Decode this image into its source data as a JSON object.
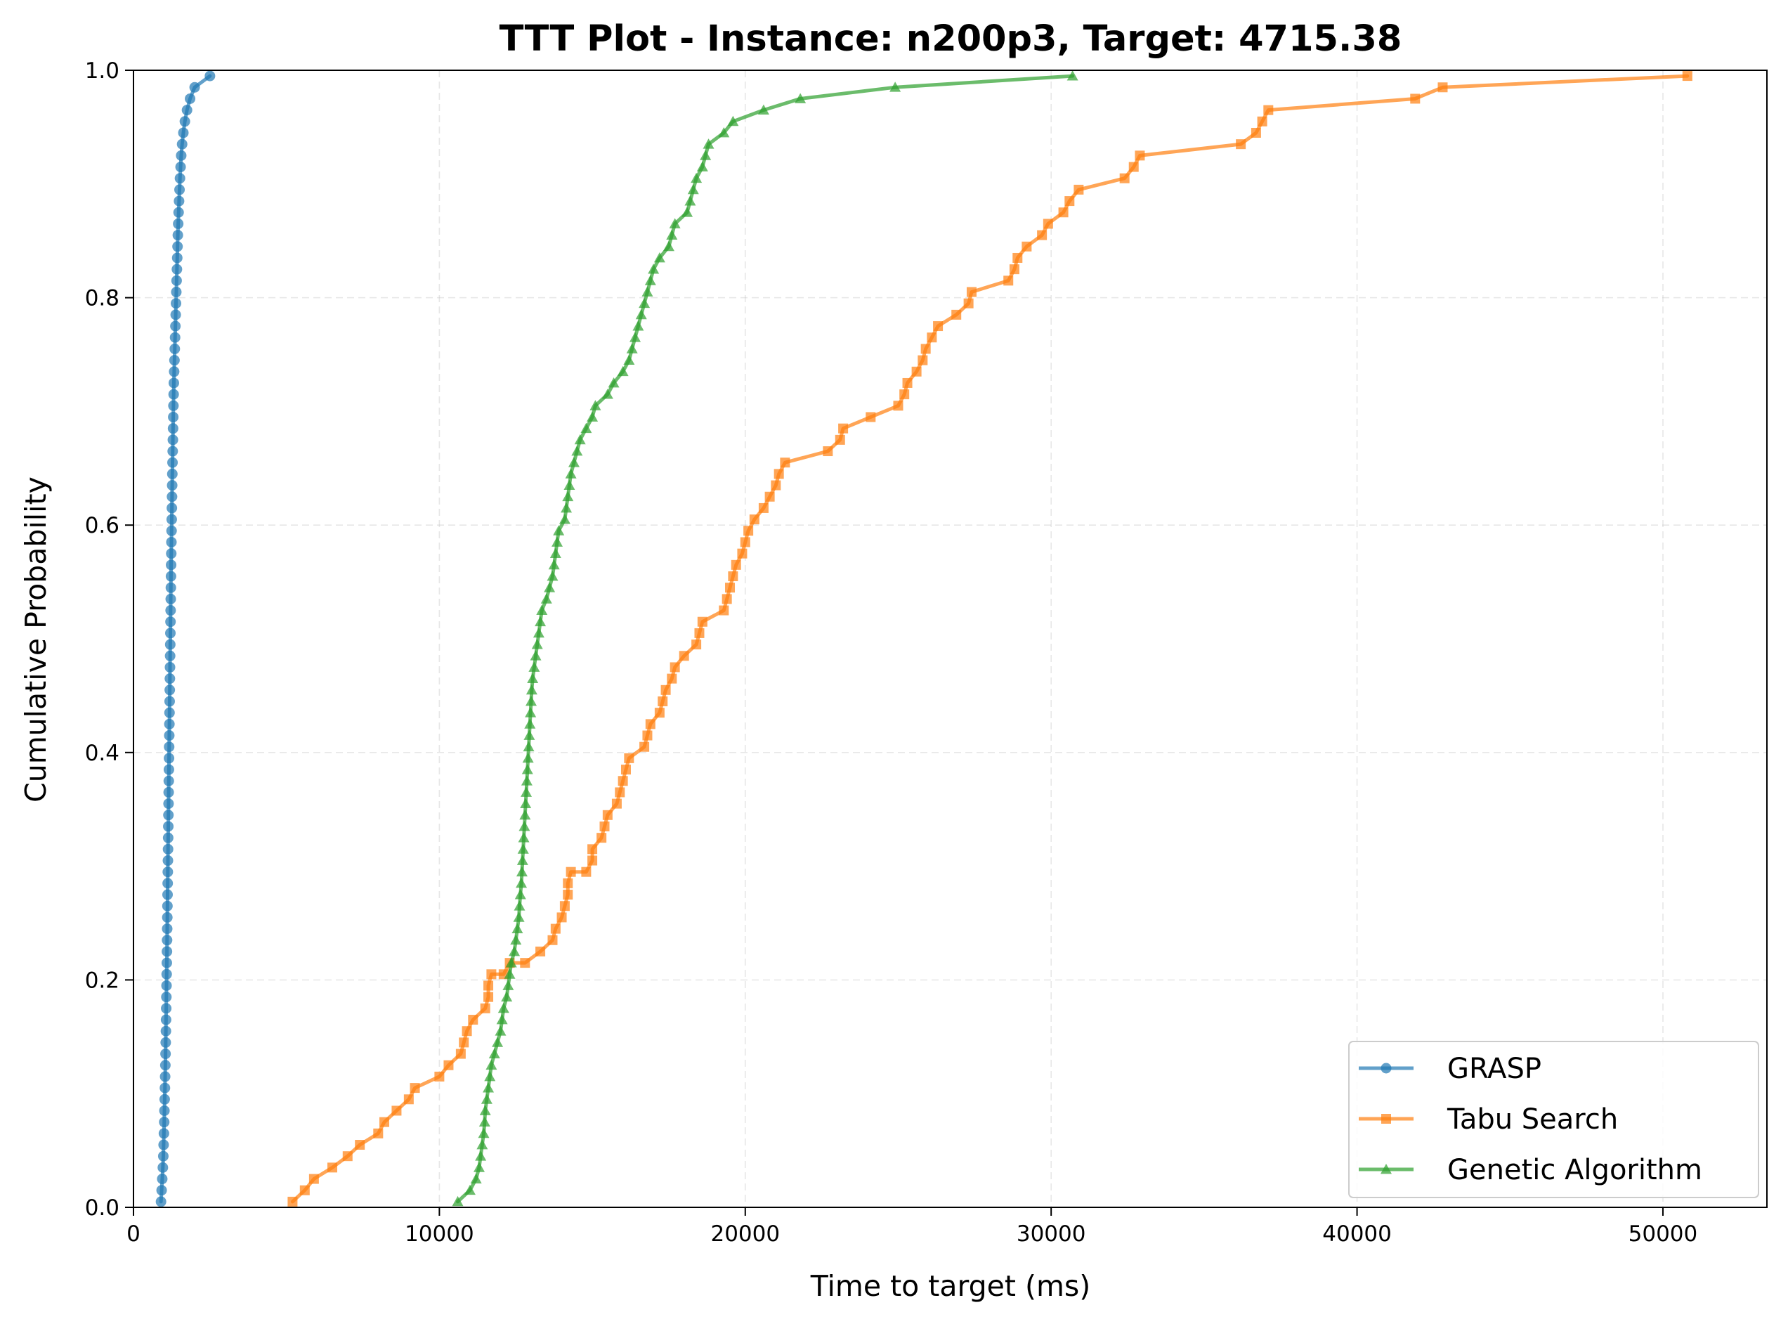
{
  "chart_data": {
    "type": "line",
    "title": "TTT Plot - Instance: n200p3, Target: 4715.38",
    "xlabel": "Time to target (ms)",
    "ylabel": "Cumulative Probability",
    "xlim": [
      0,
      53400
    ],
    "ylim": [
      0,
      1.0
    ],
    "xticks": [
      0,
      10000,
      20000,
      30000,
      40000,
      50000
    ],
    "xtick_labels": [
      "0",
      "10000",
      "20000",
      "30000",
      "40000",
      "50000"
    ],
    "yticks": [
      0.0,
      0.2,
      0.4,
      0.6,
      0.8,
      1.0
    ],
    "ytick_labels": [
      "0.0",
      "0.2",
      "0.4",
      "0.6",
      "0.8",
      "1.0"
    ],
    "grid": true,
    "legend_position": "bottom-right",
    "series": [
      {
        "name": "GRASP",
        "color": "#1f77b4",
        "marker": "circle",
        "points": [
          [
            900,
            0.005
          ],
          [
            920,
            0.015
          ],
          [
            940,
            0.025
          ],
          [
            960,
            0.035
          ],
          [
            975,
            0.045
          ],
          [
            985,
            0.055
          ],
          [
            995,
            0.065
          ],
          [
            1005,
            0.075
          ],
          [
            1012,
            0.085
          ],
          [
            1020,
            0.095
          ],
          [
            1028,
            0.105
          ],
          [
            1035,
            0.115
          ],
          [
            1042,
            0.125
          ],
          [
            1048,
            0.135
          ],
          [
            1054,
            0.145
          ],
          [
            1060,
            0.155
          ],
          [
            1065,
            0.165
          ],
          [
            1070,
            0.175
          ],
          [
            1075,
            0.185
          ],
          [
            1080,
            0.195
          ],
          [
            1085,
            0.205
          ],
          [
            1090,
            0.215
          ],
          [
            1094,
            0.225
          ],
          [
            1098,
            0.235
          ],
          [
            1102,
            0.245
          ],
          [
            1106,
            0.255
          ],
          [
            1110,
            0.265
          ],
          [
            1114,
            0.275
          ],
          [
            1118,
            0.285
          ],
          [
            1122,
            0.295
          ],
          [
            1126,
            0.305
          ],
          [
            1130,
            0.315
          ],
          [
            1134,
            0.325
          ],
          [
            1138,
            0.335
          ],
          [
            1142,
            0.345
          ],
          [
            1146,
            0.355
          ],
          [
            1150,
            0.365
          ],
          [
            1154,
            0.375
          ],
          [
            1158,
            0.385
          ],
          [
            1162,
            0.395
          ],
          [
            1166,
            0.405
          ],
          [
            1170,
            0.415
          ],
          [
            1174,
            0.425
          ],
          [
            1178,
            0.435
          ],
          [
            1182,
            0.445
          ],
          [
            1186,
            0.455
          ],
          [
            1190,
            0.465
          ],
          [
            1194,
            0.475
          ],
          [
            1198,
            0.485
          ],
          [
            1202,
            0.495
          ],
          [
            1206,
            0.505
          ],
          [
            1210,
            0.515
          ],
          [
            1214,
            0.525
          ],
          [
            1218,
            0.535
          ],
          [
            1222,
            0.545
          ],
          [
            1226,
            0.555
          ],
          [
            1230,
            0.565
          ],
          [
            1235,
            0.575
          ],
          [
            1240,
            0.585
          ],
          [
            1245,
            0.595
          ],
          [
            1250,
            0.605
          ],
          [
            1255,
            0.615
          ],
          [
            1260,
            0.625
          ],
          [
            1265,
            0.635
          ],
          [
            1270,
            0.645
          ],
          [
            1276,
            0.655
          ],
          [
            1282,
            0.665
          ],
          [
            1288,
            0.675
          ],
          [
            1294,
            0.685
          ],
          [
            1300,
            0.695
          ],
          [
            1306,
            0.705
          ],
          [
            1313,
            0.715
          ],
          [
            1320,
            0.725
          ],
          [
            1330,
            0.735
          ],
          [
            1340,
            0.745
          ],
          [
            1350,
            0.755
          ],
          [
            1360,
            0.765
          ],
          [
            1370,
            0.775
          ],
          [
            1380,
            0.785
          ],
          [
            1390,
            0.795
          ],
          [
            1400,
            0.805
          ],
          [
            1410,
            0.815
          ],
          [
            1420,
            0.825
          ],
          [
            1430,
            0.835
          ],
          [
            1440,
            0.845
          ],
          [
            1450,
            0.855
          ],
          [
            1462,
            0.865
          ],
          [
            1475,
            0.875
          ],
          [
            1490,
            0.885
          ],
          [
            1505,
            0.895
          ],
          [
            1520,
            0.905
          ],
          [
            1540,
            0.915
          ],
          [
            1560,
            0.925
          ],
          [
            1590,
            0.935
          ],
          [
            1630,
            0.945
          ],
          [
            1680,
            0.955
          ],
          [
            1750,
            0.965
          ],
          [
            1850,
            0.975
          ],
          [
            2000,
            0.985
          ],
          [
            2500,
            0.995
          ]
        ]
      },
      {
        "name": "Tabu Search",
        "color": "#ff7f0e",
        "marker": "square",
        "points": [
          [
            5200,
            0.005
          ],
          [
            5600,
            0.015
          ],
          [
            5900,
            0.025
          ],
          [
            6500,
            0.035
          ],
          [
            7000,
            0.045
          ],
          [
            7400,
            0.055
          ],
          [
            8000,
            0.065
          ],
          [
            8200,
            0.075
          ],
          [
            8600,
            0.085
          ],
          [
            9000,
            0.095
          ],
          [
            9200,
            0.105
          ],
          [
            10000,
            0.115
          ],
          [
            10300,
            0.125
          ],
          [
            10700,
            0.135
          ],
          [
            10800,
            0.145
          ],
          [
            10900,
            0.155
          ],
          [
            11100,
            0.165
          ],
          [
            11500,
            0.175
          ],
          [
            11600,
            0.185
          ],
          [
            11600,
            0.195
          ],
          [
            11700,
            0.205
          ],
          [
            12100,
            0.205
          ],
          [
            12300,
            0.215
          ],
          [
            12800,
            0.215
          ],
          [
            13300,
            0.225
          ],
          [
            13700,
            0.235
          ],
          [
            13800,
            0.245
          ],
          [
            14000,
            0.255
          ],
          [
            14100,
            0.265
          ],
          [
            14200,
            0.275
          ],
          [
            14200,
            0.285
          ],
          [
            14300,
            0.295
          ],
          [
            14800,
            0.295
          ],
          [
            15000,
            0.305
          ],
          [
            15000,
            0.315
          ],
          [
            15300,
            0.325
          ],
          [
            15400,
            0.335
          ],
          [
            15500,
            0.345
          ],
          [
            15800,
            0.355
          ],
          [
            15900,
            0.365
          ],
          [
            16000,
            0.375
          ],
          [
            16100,
            0.385
          ],
          [
            16200,
            0.395
          ],
          [
            16700,
            0.405
          ],
          [
            16800,
            0.415
          ],
          [
            16900,
            0.425
          ],
          [
            17200,
            0.435
          ],
          [
            17300,
            0.445
          ],
          [
            17400,
            0.455
          ],
          [
            17600,
            0.465
          ],
          [
            17700,
            0.475
          ],
          [
            18000,
            0.485
          ],
          [
            18400,
            0.495
          ],
          [
            18500,
            0.505
          ],
          [
            18600,
            0.515
          ],
          [
            19300,
            0.525
          ],
          [
            19400,
            0.535
          ],
          [
            19500,
            0.545
          ],
          [
            19600,
            0.555
          ],
          [
            19700,
            0.565
          ],
          [
            19900,
            0.575
          ],
          [
            20000,
            0.585
          ],
          [
            20100,
            0.595
          ],
          [
            20300,
            0.605
          ],
          [
            20600,
            0.615
          ],
          [
            20800,
            0.625
          ],
          [
            21000,
            0.635
          ],
          [
            21100,
            0.645
          ],
          [
            21300,
            0.655
          ],
          [
            22700,
            0.665
          ],
          [
            23100,
            0.675
          ],
          [
            23200,
            0.685
          ],
          [
            24100,
            0.695
          ],
          [
            25000,
            0.705
          ],
          [
            25200,
            0.715
          ],
          [
            25300,
            0.725
          ],
          [
            25600,
            0.735
          ],
          [
            25800,
            0.745
          ],
          [
            25900,
            0.755
          ],
          [
            26100,
            0.765
          ],
          [
            26300,
            0.775
          ],
          [
            26900,
            0.785
          ],
          [
            27300,
            0.795
          ],
          [
            27400,
            0.805
          ],
          [
            28600,
            0.815
          ],
          [
            28800,
            0.825
          ],
          [
            28900,
            0.835
          ],
          [
            29200,
            0.845
          ],
          [
            29700,
            0.855
          ],
          [
            29900,
            0.865
          ],
          [
            30400,
            0.875
          ],
          [
            30600,
            0.885
          ],
          [
            30900,
            0.895
          ],
          [
            32400,
            0.905
          ],
          [
            32700,
            0.915
          ],
          [
            32900,
            0.925
          ],
          [
            36200,
            0.935
          ],
          [
            36700,
            0.945
          ],
          [
            36900,
            0.955
          ],
          [
            37100,
            0.965
          ],
          [
            41900,
            0.975
          ],
          [
            42800,
            0.985
          ],
          [
            50800,
            0.995
          ]
        ]
      },
      {
        "name": "Genetic Algorithm",
        "color": "#2ca02c",
        "marker": "triangle",
        "points": [
          [
            10600,
            0.005
          ],
          [
            11000,
            0.015
          ],
          [
            11200,
            0.025
          ],
          [
            11300,
            0.035
          ],
          [
            11350,
            0.045
          ],
          [
            11400,
            0.055
          ],
          [
            11450,
            0.065
          ],
          [
            11480,
            0.075
          ],
          [
            11500,
            0.085
          ],
          [
            11550,
            0.095
          ],
          [
            11600,
            0.105
          ],
          [
            11650,
            0.115
          ],
          [
            11700,
            0.125
          ],
          [
            11800,
            0.135
          ],
          [
            11900,
            0.145
          ],
          [
            12000,
            0.155
          ],
          [
            12050,
            0.165
          ],
          [
            12100,
            0.175
          ],
          [
            12200,
            0.185
          ],
          [
            12250,
            0.195
          ],
          [
            12300,
            0.205
          ],
          [
            12350,
            0.215
          ],
          [
            12450,
            0.225
          ],
          [
            12500,
            0.235
          ],
          [
            12550,
            0.245
          ],
          [
            12600,
            0.255
          ],
          [
            12620,
            0.265
          ],
          [
            12650,
            0.275
          ],
          [
            12680,
            0.285
          ],
          [
            12700,
            0.295
          ],
          [
            12720,
            0.305
          ],
          [
            12740,
            0.315
          ],
          [
            12760,
            0.325
          ],
          [
            12780,
            0.335
          ],
          [
            12800,
            0.345
          ],
          [
            12820,
            0.355
          ],
          [
            12840,
            0.365
          ],
          [
            12860,
            0.375
          ],
          [
            12880,
            0.385
          ],
          [
            12900,
            0.395
          ],
          [
            12920,
            0.405
          ],
          [
            12940,
            0.415
          ],
          [
            12960,
            0.425
          ],
          [
            12980,
            0.435
          ],
          [
            13000,
            0.445
          ],
          [
            13020,
            0.455
          ],
          [
            13050,
            0.465
          ],
          [
            13100,
            0.475
          ],
          [
            13150,
            0.485
          ],
          [
            13200,
            0.495
          ],
          [
            13250,
            0.505
          ],
          [
            13300,
            0.515
          ],
          [
            13350,
            0.525
          ],
          [
            13500,
            0.535
          ],
          [
            13600,
            0.545
          ],
          [
            13700,
            0.555
          ],
          [
            13750,
            0.565
          ],
          [
            13800,
            0.575
          ],
          [
            13850,
            0.585
          ],
          [
            13900,
            0.595
          ],
          [
            14100,
            0.605
          ],
          [
            14150,
            0.615
          ],
          [
            14200,
            0.625
          ],
          [
            14250,
            0.635
          ],
          [
            14300,
            0.645
          ],
          [
            14400,
            0.655
          ],
          [
            14500,
            0.665
          ],
          [
            14600,
            0.675
          ],
          [
            14800,
            0.685
          ],
          [
            15000,
            0.695
          ],
          [
            15100,
            0.705
          ],
          [
            15500,
            0.715
          ],
          [
            15700,
            0.725
          ],
          [
            16000,
            0.735
          ],
          [
            16200,
            0.745
          ],
          [
            16300,
            0.755
          ],
          [
            16400,
            0.765
          ],
          [
            16500,
            0.775
          ],
          [
            16600,
            0.785
          ],
          [
            16700,
            0.795
          ],
          [
            16800,
            0.805
          ],
          [
            16900,
            0.815
          ],
          [
            17000,
            0.825
          ],
          [
            17200,
            0.835
          ],
          [
            17500,
            0.845
          ],
          [
            17600,
            0.855
          ],
          [
            17700,
            0.865
          ],
          [
            18100,
            0.875
          ],
          [
            18200,
            0.885
          ],
          [
            18300,
            0.895
          ],
          [
            18400,
            0.905
          ],
          [
            18600,
            0.915
          ],
          [
            18700,
            0.925
          ],
          [
            18800,
            0.935
          ],
          [
            19300,
            0.945
          ],
          [
            19600,
            0.955
          ],
          [
            20600,
            0.965
          ],
          [
            21800,
            0.975
          ],
          [
            24900,
            0.985
          ],
          [
            30700,
            0.995
          ]
        ]
      }
    ]
  }
}
